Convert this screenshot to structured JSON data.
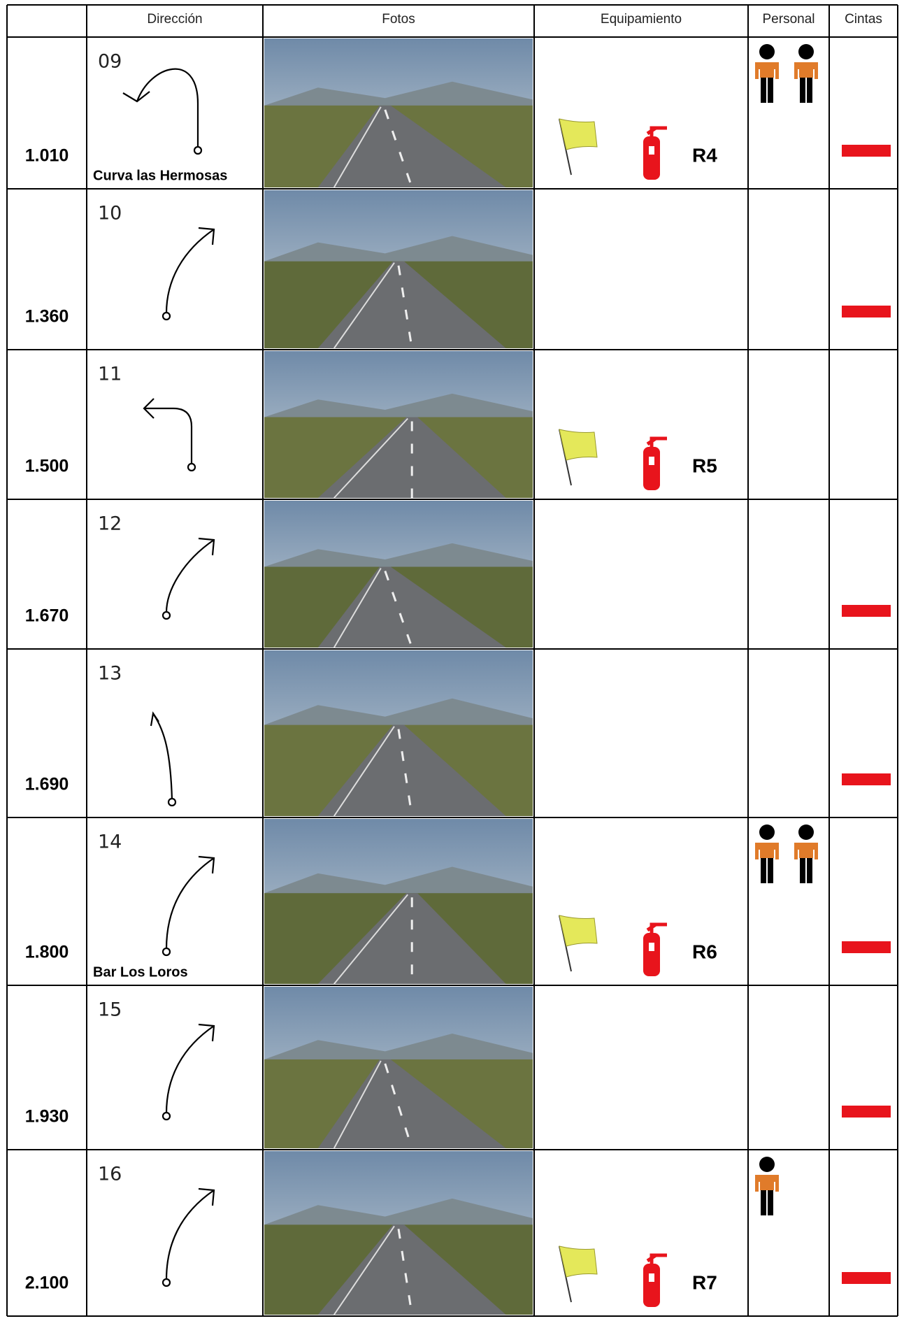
{
  "table": {
    "header": [
      "Dirección",
      "Fotos",
      "Equipamiento",
      "Personal",
      "Cintas"
    ],
    "rows": [
      {
        "km": "1.010",
        "number": "09",
        "place": "Curva las Hermosas",
        "equipment": "R4",
        "personnel": 2,
        "tape": true,
        "turn": "hairpin-left"
      },
      {
        "km": "1.360",
        "number": "10",
        "personnel": 0,
        "tape": true,
        "turn": "right"
      },
      {
        "km": "1.500",
        "number": "11",
        "equipment": "R5",
        "personnel": 0,
        "tape": false,
        "turn": "left"
      },
      {
        "km": "1.670",
        "number": "12",
        "personnel": 0,
        "tape": true,
        "turn": "right"
      },
      {
        "km": "1.690",
        "number": "13",
        "personnel": 0,
        "tape": true,
        "turn": "slight-left"
      },
      {
        "km": "1.800",
        "number": "14",
        "place": "Bar Los Loros",
        "equipment": "R6",
        "personnel": 2,
        "tape": true,
        "turn": "right"
      },
      {
        "km": "1.930",
        "number": "15",
        "personnel": 0,
        "tape": true,
        "turn": "right"
      },
      {
        "km": "2.100",
        "number": "16",
        "equipment": "R7",
        "personnel": 1,
        "tape": true,
        "turn": "right"
      }
    ]
  }
}
